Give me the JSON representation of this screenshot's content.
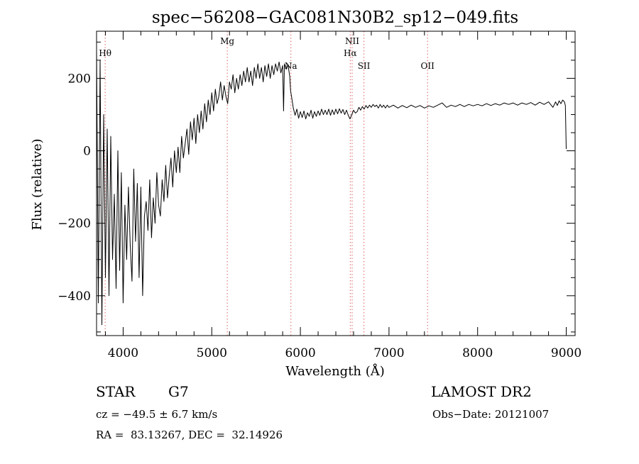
{
  "chart_data": {
    "type": "line",
    "title": "spec−56208−GAC081N30B2_sp12−049.fits",
    "xlabel": "Wavelength (Å)",
    "ylabel": "Flux (relative)",
    "xlim": [
      3700,
      9100
    ],
    "ylim": [
      -510,
      330
    ],
    "xticks": [
      {
        "value": 4000,
        "label": "4000"
      },
      {
        "value": 5000,
        "label": "5000"
      },
      {
        "value": 6000,
        "label": "6000"
      },
      {
        "value": 7000,
        "label": "7000"
      },
      {
        "value": 8000,
        "label": "8000"
      },
      {
        "value": 9000,
        "label": "9000"
      }
    ],
    "yticks": [
      {
        "value": 200,
        "label": "200"
      },
      {
        "value": 0,
        "label": "0"
      },
      {
        "value": -200,
        "label": "−200"
      },
      {
        "value": -400,
        "label": "−400"
      }
    ],
    "lines": [
      {
        "label": "Hθ",
        "wavelength": 3797,
        "label_row": 1
      },
      {
        "label": "Mg",
        "wavelength": 5175,
        "label_row": 0
      },
      {
        "label": "Na",
        "wavelength": 5893,
        "label_row": 2
      },
      {
        "label": "NII",
        "wavelength": 6584,
        "label_row": 0
      },
      {
        "label": "Hα",
        "wavelength": 6563,
        "label_row": 1
      },
      {
        "label": "SII",
        "wavelength": 6717,
        "label_row": 2
      },
      {
        "label": "OII",
        "wavelength": 7435,
        "label_row": 2
      }
    ],
    "series": [
      {
        "points": [
          [
            3700,
            280
          ],
          [
            3720,
            -420
          ],
          [
            3740,
            250
          ],
          [
            3760,
            -480
          ],
          [
            3780,
            100
          ],
          [
            3800,
            -350
          ],
          [
            3820,
            60
          ],
          [
            3840,
            -400
          ],
          [
            3860,
            40
          ],
          [
            3880,
            -300
          ],
          [
            3900,
            -120
          ],
          [
            3920,
            -380
          ],
          [
            3940,
            0
          ],
          [
            3960,
            -330
          ],
          [
            3980,
            -60
          ],
          [
            4000,
            -420
          ],
          [
            4020,
            -150
          ],
          [
            4040,
            -300
          ],
          [
            4060,
            -100
          ],
          [
            4080,
            -260
          ],
          [
            4100,
            -360
          ],
          [
            4120,
            -50
          ],
          [
            4140,
            -250
          ],
          [
            4160,
            -90
          ],
          [
            4180,
            -350
          ],
          [
            4200,
            -100
          ],
          [
            4220,
            -400
          ],
          [
            4240,
            -180
          ],
          [
            4260,
            -140
          ],
          [
            4280,
            -220
          ],
          [
            4300,
            -80
          ],
          [
            4320,
            -240
          ],
          [
            4340,
            -130
          ],
          [
            4360,
            -200
          ],
          [
            4380,
            -60
          ],
          [
            4400,
            -150
          ],
          [
            4420,
            -180
          ],
          [
            4440,
            -80
          ],
          [
            4460,
            -140
          ],
          [
            4480,
            -40
          ],
          [
            4500,
            -130
          ],
          [
            4520,
            -70
          ],
          [
            4540,
            -20
          ],
          [
            4560,
            -100
          ],
          [
            4580,
            0
          ],
          [
            4600,
            -60
          ],
          [
            4620,
            10
          ],
          [
            4640,
            -60
          ],
          [
            4660,
            40
          ],
          [
            4680,
            -20
          ],
          [
            4700,
            20
          ],
          [
            4720,
            60
          ],
          [
            4740,
            -10
          ],
          [
            4760,
            80
          ],
          [
            4780,
            30
          ],
          [
            4800,
            90
          ],
          [
            4820,
            20
          ],
          [
            4840,
            100
          ],
          [
            4860,
            50
          ],
          [
            4880,
            110
          ],
          [
            4900,
            60
          ],
          [
            4920,
            130
          ],
          [
            4940,
            80
          ],
          [
            4960,
            140
          ],
          [
            4980,
            100
          ],
          [
            5000,
            160
          ],
          [
            5020,
            110
          ],
          [
            5040,
            170
          ],
          [
            5060,
            130
          ],
          [
            5080,
            150
          ],
          [
            5100,
            190
          ],
          [
            5120,
            140
          ],
          [
            5140,
            180
          ],
          [
            5160,
            150
          ],
          [
            5180,
            130
          ],
          [
            5200,
            190
          ],
          [
            5220,
            170
          ],
          [
            5240,
            210
          ],
          [
            5260,
            160
          ],
          [
            5280,
            200
          ],
          [
            5300,
            170
          ],
          [
            5320,
            210
          ],
          [
            5340,
            180
          ],
          [
            5360,
            220
          ],
          [
            5380,
            190
          ],
          [
            5400,
            230
          ],
          [
            5420,
            190
          ],
          [
            5440,
            220
          ],
          [
            5460,
            180
          ],
          [
            5480,
            230
          ],
          [
            5500,
            200
          ],
          [
            5520,
            240
          ],
          [
            5540,
            200
          ],
          [
            5560,
            230
          ],
          [
            5580,
            190
          ],
          [
            5600,
            235
          ],
          [
            5620,
            205
          ],
          [
            5640,
            240
          ],
          [
            5660,
            200
          ],
          [
            5680,
            235
          ],
          [
            5700,
            210
          ],
          [
            5720,
            240
          ],
          [
            5740,
            220
          ],
          [
            5760,
            245
          ],
          [
            5780,
            215
          ],
          [
            5800,
            235
          ],
          [
            5810,
            110
          ],
          [
            5820,
            240
          ],
          [
            5840,
            225
          ],
          [
            5860,
            238
          ],
          [
            5880,
            205
          ],
          [
            5890,
            165
          ],
          [
            5900,
            150
          ],
          [
            5920,
            118
          ],
          [
            5940,
            98
          ],
          [
            5960,
            115
          ],
          [
            5980,
            90
          ],
          [
            6000,
            108
          ],
          [
            6020,
            92
          ],
          [
            6040,
            110
          ],
          [
            6060,
            88
          ],
          [
            6080,
            105
          ],
          [
            6100,
            95
          ],
          [
            6120,
            112
          ],
          [
            6140,
            90
          ],
          [
            6160,
            108
          ],
          [
            6180,
            95
          ],
          [
            6200,
            110
          ],
          [
            6220,
            98
          ],
          [
            6240,
            115
          ],
          [
            6260,
            100
          ],
          [
            6280,
            112
          ],
          [
            6300,
            100
          ],
          [
            6320,
            115
          ],
          [
            6340,
            98
          ],
          [
            6360,
            113
          ],
          [
            6380,
            100
          ],
          [
            6400,
            115
          ],
          [
            6420,
            102
          ],
          [
            6440,
            116
          ],
          [
            6460,
            104
          ],
          [
            6480,
            114
          ],
          [
            6500,
            100
          ],
          [
            6520,
            112
          ],
          [
            6540,
            98
          ],
          [
            6560,
            88
          ],
          [
            6580,
            100
          ],
          [
            6600,
            112
          ],
          [
            6620,
            104
          ],
          [
            6640,
            108
          ],
          [
            6660,
            120
          ],
          [
            6680,
            112
          ],
          [
            6700,
            122
          ],
          [
            6720,
            115
          ],
          [
            6740,
            125
          ],
          [
            6760,
            118
          ],
          [
            6780,
            126
          ],
          [
            6800,
            120
          ],
          [
            6820,
            128
          ],
          [
            6840,
            122
          ],
          [
            6860,
            126
          ],
          [
            6880,
            118
          ],
          [
            6900,
            128
          ],
          [
            6920,
            120
          ],
          [
            6940,
            126
          ],
          [
            6960,
            118
          ],
          [
            6980,
            126
          ],
          [
            7000,
            120
          ],
          [
            7050,
            126
          ],
          [
            7100,
            118
          ],
          [
            7150,
            125
          ],
          [
            7200,
            119
          ],
          [
            7250,
            126
          ],
          [
            7300,
            120
          ],
          [
            7350,
            125
          ],
          [
            7400,
            118
          ],
          [
            7450,
            124
          ],
          [
            7500,
            120
          ],
          [
            7550,
            126
          ],
          [
            7600,
            132
          ],
          [
            7650,
            120
          ],
          [
            7700,
            126
          ],
          [
            7750,
            122
          ],
          [
            7800,
            128
          ],
          [
            7850,
            122
          ],
          [
            7900,
            128
          ],
          [
            7950,
            124
          ],
          [
            8000,
            128
          ],
          [
            8050,
            124
          ],
          [
            8100,
            130
          ],
          [
            8150,
            125
          ],
          [
            8200,
            130
          ],
          [
            8250,
            126
          ],
          [
            8300,
            132
          ],
          [
            8350,
            128
          ],
          [
            8400,
            132
          ],
          [
            8450,
            126
          ],
          [
            8500,
            132
          ],
          [
            8550,
            128
          ],
          [
            8600,
            133
          ],
          [
            8650,
            126
          ],
          [
            8700,
            134
          ],
          [
            8750,
            128
          ],
          [
            8800,
            135
          ],
          [
            8850,
            120
          ],
          [
            8880,
            135
          ],
          [
            8900,
            125
          ],
          [
            8920,
            138
          ],
          [
            8940,
            130
          ],
          [
            8960,
            140
          ],
          [
            8980,
            135
          ],
          [
            8990,
            125
          ],
          [
            9000,
            5
          ]
        ]
      }
    ]
  },
  "info": {
    "object_class": "STAR",
    "subclass": "G7",
    "survey": "LAMOST DR2",
    "cz": "cz = −49.5 ± 6.7 km/s",
    "obs_date": "Obs−Date: 20121007",
    "coords": "RA =  83.13267, DEC =  32.14926"
  },
  "colors": {
    "trace": "#000000",
    "line_markers": "#e06060",
    "axes": "#000000"
  }
}
